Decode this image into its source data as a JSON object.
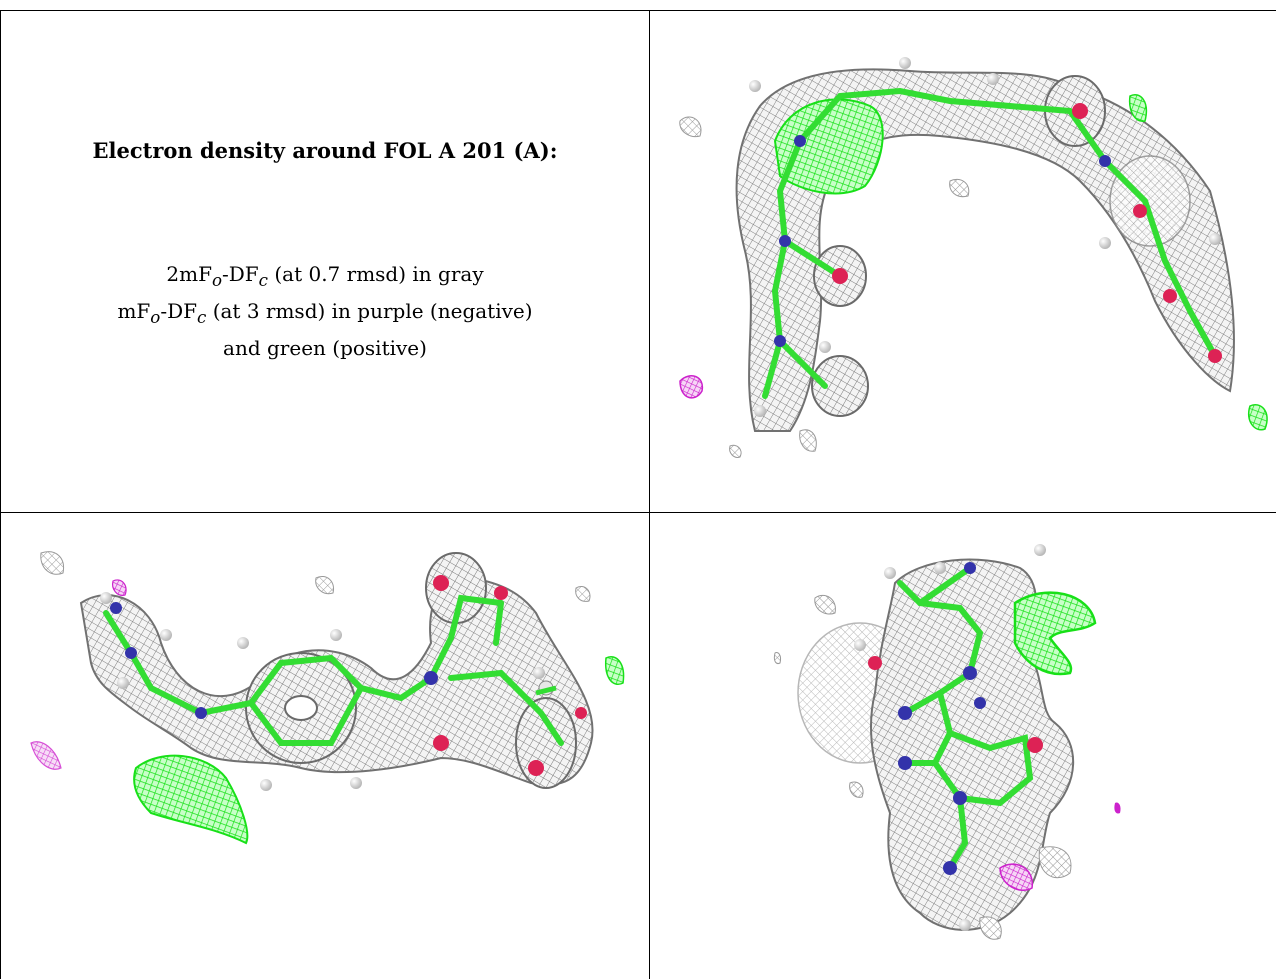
{
  "heading": "Electron density around FOL A 201 (A):",
  "caption": {
    "line1": {
      "pre": "2mF",
      "sub1": "o",
      "mid": "-DF",
      "sub2": "c",
      "post": " (at 0.7 rmsd) in gray"
    },
    "line2": {
      "pre": "mF",
      "sub1": "o",
      "mid": "-DF",
      "sub2": "c",
      "post": " (at 3 rmsd) in purple (negative)"
    },
    "line3": "and green (positive)"
  },
  "colors": {
    "map_2fofc": "#8a8a8a",
    "map_positive": "#22ee22",
    "map_negative": "#cc22cc",
    "carbon": "#33dd33",
    "nitrogen": "#3333aa",
    "oxygen": "#dd2255",
    "hydrogen": "#e8e8e8"
  },
  "panels": [
    {
      "name": "density-view-top-right",
      "icon": "ligand-density-mesh-icon"
    },
    {
      "name": "density-view-bottom-left",
      "icon": "ligand-density-mesh-icon"
    },
    {
      "name": "density-view-bottom-right",
      "icon": "ligand-density-mesh-icon"
    }
  ]
}
